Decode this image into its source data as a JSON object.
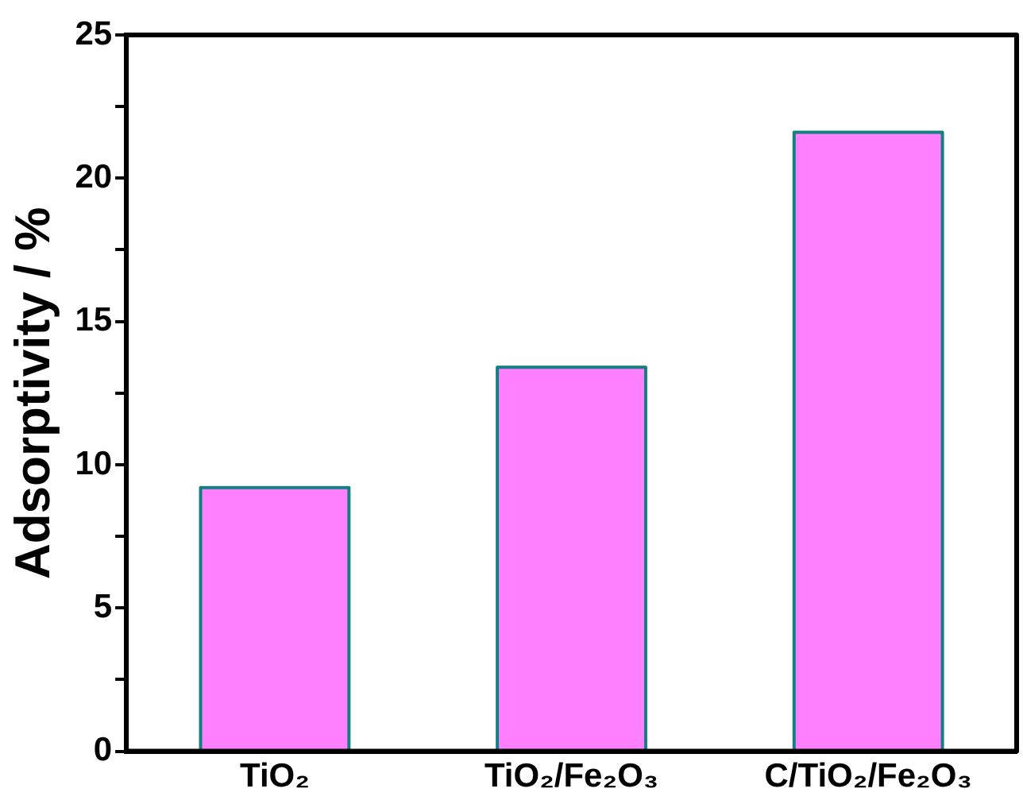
{
  "chart_data": {
    "type": "bar",
    "ylabel": "Adsorptivity / %",
    "categories": [
      "TiO₂",
      "TiO₂/Fe₂O₃",
      "C/TiO₂/Fe₂O₃"
    ],
    "values": [
      9.2,
      13.4,
      21.6
    ],
    "color": "#ff80ff",
    "ylim": [
      0,
      25
    ],
    "yticks": [
      0,
      {
        "value": 2.5,
        "label": null
      },
      5,
      {
        "value": 7.5,
        "label": null
      },
      10,
      {
        "value": 12.5,
        "label": null
      },
      15,
      {
        "value": 17.5,
        "label": null
      },
      20,
      {
        "value": 22.5,
        "label": null
      },
      25
    ],
    "grid": false,
    "legend": false
  }
}
